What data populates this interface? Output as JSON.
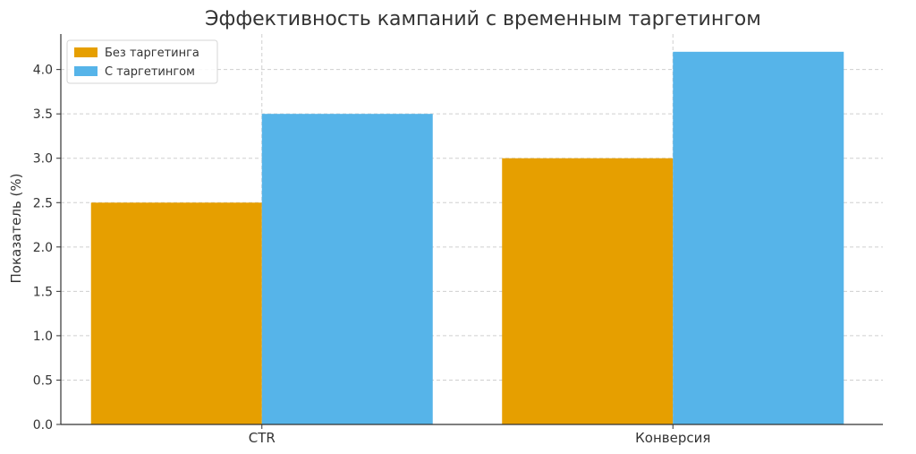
{
  "chart_data": {
    "type": "bar",
    "title": "Эффективность кампаний с временным таргетингом",
    "xlabel": "",
    "ylabel": "Показатель (%)",
    "categories": [
      "CTR",
      "Конверсия"
    ],
    "series": [
      {
        "name": "Без таргетинга",
        "values": [
          2.5,
          3.0
        ],
        "color": "#E69F00"
      },
      {
        "name": "С таргетингом",
        "values": [
          3.5,
          4.2
        ],
        "color": "#56B4E9"
      }
    ],
    "ylim": [
      0,
      4.4
    ],
    "yticks": [
      "0.0",
      "0.5",
      "1.0",
      "1.5",
      "2.0",
      "2.5",
      "3.0",
      "3.5",
      "4.0"
    ],
    "grid": true,
    "legend_position": "top-left"
  }
}
